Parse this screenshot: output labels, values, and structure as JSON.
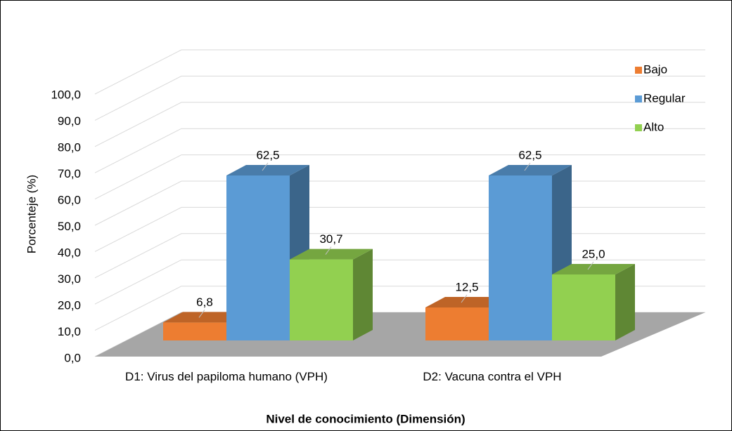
{
  "chart_data": {
    "type": "bar3d",
    "x_label": "Nivel de conocimiento (Dimensión)",
    "y_label": "Porcenteje (%)",
    "categories": [
      "D1: Virus del papiloma humano (VPH)",
      "D2: Vacuna contra el VPH"
    ],
    "series": [
      {
        "name": "Bajo",
        "color": "#ed7d31",
        "values": [
          6.8,
          12.5
        ],
        "value_labels": [
          "6,8",
          "12,5"
        ]
      },
      {
        "name": "Regular",
        "color": "#5b9bd5",
        "values": [
          62.5,
          62.5
        ],
        "value_labels": [
          "62,5",
          "62,5"
        ]
      },
      {
        "name": "Alto",
        "color": "#92d050",
        "values": [
          30.7,
          25.0
        ],
        "value_labels": [
          "30,7",
          "25,0"
        ]
      }
    ],
    "ylim": [
      0,
      100
    ],
    "yticks": [
      {
        "value": 0,
        "label": "0,0"
      },
      {
        "value": 10,
        "label": "10,0"
      },
      {
        "value": 20,
        "label": "20,0"
      },
      {
        "value": 30,
        "label": "30,0"
      },
      {
        "value": 40,
        "label": "40,0"
      },
      {
        "value": 50,
        "label": "50,0"
      },
      {
        "value": 60,
        "label": "60,0"
      },
      {
        "value": 70,
        "label": "70,0"
      },
      {
        "value": 80,
        "label": "80,0"
      },
      {
        "value": 90,
        "label": "90,0"
      },
      {
        "value": 100,
        "label": "100,0"
      }
    ],
    "grid": true,
    "legend": "right"
  }
}
